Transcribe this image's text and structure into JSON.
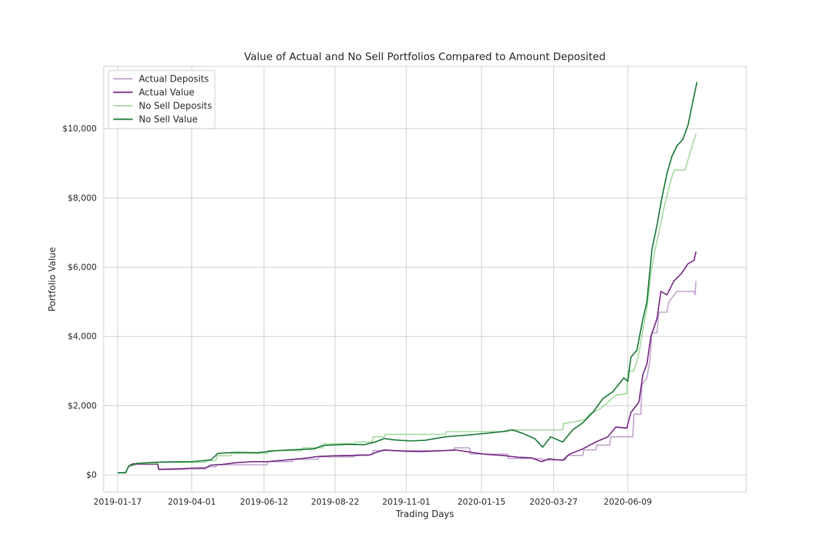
{
  "chart_data": {
    "type": "line",
    "title": "Value of Actual and No Sell Portfolios Compared to Amount Deposited",
    "xlabel": "Trading Days",
    "ylabel": "Portfolio Value",
    "x_tick_labels": [
      "2019-01-17",
      "2019-04-01",
      "2019-06-12",
      "2019-08-22",
      "2019-11-01",
      "2020-01-15",
      "2020-03-27",
      "2020-06-09"
    ],
    "y_ticks": [
      0,
      2000,
      4000,
      6000,
      8000,
      10000
    ],
    "y_tick_labels": [
      "$0",
      "$2,000",
      "$4,000",
      "$6,000",
      "$8,000",
      "$10,000"
    ],
    "xlim": [
      "2019-01-03",
      "2020-10-05"
    ],
    "ylim": [
      -500,
      11800
    ],
    "grid": true,
    "legend_position": "top-left",
    "series": [
      {
        "name": "Actual Deposits",
        "color": "#c2a5cf",
        "points": [
          [
            "2019-01-17",
            60
          ],
          [
            "2019-01-25",
            60
          ],
          [
            "2019-01-28",
            250
          ],
          [
            "2019-02-05",
            300
          ],
          [
            "2019-02-26",
            300
          ],
          [
            "2019-02-27",
            150
          ],
          [
            "2019-03-20",
            150
          ],
          [
            "2019-03-28",
            170
          ],
          [
            "2019-04-15",
            170
          ],
          [
            "2019-04-16",
            230
          ],
          [
            "2019-04-25",
            230
          ],
          [
            "2019-04-26",
            290
          ],
          [
            "2019-06-15",
            290
          ],
          [
            "2019-06-16",
            380
          ],
          [
            "2019-07-10",
            380
          ],
          [
            "2019-07-11",
            450
          ],
          [
            "2019-08-05",
            450
          ],
          [
            "2019-08-06",
            520
          ],
          [
            "2019-09-10",
            520
          ],
          [
            "2019-09-11",
            580
          ],
          [
            "2019-09-28",
            580
          ],
          [
            "2019-09-29",
            700
          ],
          [
            "2019-12-18",
            700
          ],
          [
            "2019-12-19",
            780
          ],
          [
            "2020-01-03",
            780
          ],
          [
            "2020-01-04",
            600
          ],
          [
            "2020-02-10",
            600
          ],
          [
            "2020-02-11",
            470
          ],
          [
            "2020-03-15",
            470
          ],
          [
            "2020-03-16",
            430
          ],
          [
            "2020-04-08",
            430
          ],
          [
            "2020-04-09",
            560
          ],
          [
            "2020-04-25",
            560
          ],
          [
            "2020-04-26",
            720
          ],
          [
            "2020-05-08",
            720
          ],
          [
            "2020-05-09",
            860
          ],
          [
            "2020-05-22",
            860
          ],
          [
            "2020-05-23",
            1100
          ],
          [
            "2020-06-14",
            1100
          ],
          [
            "2020-06-15",
            1750
          ],
          [
            "2020-06-22",
            1750
          ],
          [
            "2020-06-23",
            2600
          ],
          [
            "2020-06-28",
            2800
          ],
          [
            "2020-07-01",
            3300
          ],
          [
            "2020-07-03",
            4100
          ],
          [
            "2020-07-08",
            4100
          ],
          [
            "2020-07-10",
            4700
          ],
          [
            "2020-07-18",
            4700
          ],
          [
            "2020-07-20",
            5000
          ],
          [
            "2020-07-28",
            5300
          ],
          [
            "2020-08-14",
            5300
          ],
          [
            "2020-08-15",
            5200
          ],
          [
            "2020-08-16",
            5600
          ]
        ]
      },
      {
        "name": "Actual Value",
        "color": "#762a83",
        "points": [
          [
            "2019-01-17",
            60
          ],
          [
            "2019-01-25",
            65
          ],
          [
            "2019-01-28",
            250
          ],
          [
            "2019-02-01",
            320
          ],
          [
            "2019-02-10",
            310
          ],
          [
            "2019-02-26",
            310
          ],
          [
            "2019-02-27",
            160
          ],
          [
            "2019-03-15",
            170
          ],
          [
            "2019-04-01",
            190
          ],
          [
            "2019-04-15",
            200
          ],
          [
            "2019-04-20",
            280
          ],
          [
            "2019-05-01",
            300
          ],
          [
            "2019-05-15",
            350
          ],
          [
            "2019-06-01",
            380
          ],
          [
            "2019-06-15",
            380
          ],
          [
            "2019-07-01",
            420
          ],
          [
            "2019-07-20",
            470
          ],
          [
            "2019-08-05",
            530
          ],
          [
            "2019-08-20",
            550
          ],
          [
            "2019-09-10",
            560
          ],
          [
            "2019-09-25",
            570
          ],
          [
            "2019-10-01",
            640
          ],
          [
            "2019-10-10",
            720
          ],
          [
            "2019-10-20",
            700
          ],
          [
            "2019-11-01",
            680
          ],
          [
            "2019-11-15",
            670
          ],
          [
            "2019-12-01",
            690
          ],
          [
            "2019-12-20",
            720
          ],
          [
            "2020-01-05",
            650
          ],
          [
            "2020-01-20",
            590
          ],
          [
            "2020-02-05",
            560
          ],
          [
            "2020-02-20",
            510
          ],
          [
            "2020-03-05",
            490
          ],
          [
            "2020-03-15",
            380
          ],
          [
            "2020-03-22",
            460
          ],
          [
            "2020-04-05",
            420
          ],
          [
            "2020-04-12",
            600
          ],
          [
            "2020-04-25",
            750
          ],
          [
            "2020-05-08",
            950
          ],
          [
            "2020-05-20",
            1100
          ],
          [
            "2020-05-28",
            1380
          ],
          [
            "2020-06-08",
            1350
          ],
          [
            "2020-06-12",
            1800
          ],
          [
            "2020-06-20",
            2100
          ],
          [
            "2020-06-24",
            2900
          ],
          [
            "2020-06-28",
            3200
          ],
          [
            "2020-07-02",
            4000
          ],
          [
            "2020-07-08",
            4500
          ],
          [
            "2020-07-12",
            5300
          ],
          [
            "2020-07-18",
            5200
          ],
          [
            "2020-07-25",
            5600
          ],
          [
            "2020-08-01",
            5800
          ],
          [
            "2020-08-08",
            6100
          ],
          [
            "2020-08-14",
            6200
          ],
          [
            "2020-08-16",
            6450
          ]
        ]
      },
      {
        "name": "No Sell Deposits",
        "color": "#a6dba0",
        "points": [
          [
            "2019-01-17",
            60
          ],
          [
            "2019-01-25",
            60
          ],
          [
            "2019-01-28",
            250
          ],
          [
            "2019-02-05",
            330
          ],
          [
            "2019-02-25",
            330
          ],
          [
            "2019-02-26",
            360
          ],
          [
            "2019-04-15",
            360
          ],
          [
            "2019-04-16",
            410
          ],
          [
            "2019-04-25",
            410
          ],
          [
            "2019-04-26",
            550
          ],
          [
            "2019-05-10",
            550
          ],
          [
            "2019-05-11",
            620
          ],
          [
            "2019-06-15",
            620
          ],
          [
            "2019-06-16",
            700
          ],
          [
            "2019-07-20",
            700
          ],
          [
            "2019-07-21",
            780
          ],
          [
            "2019-08-10",
            780
          ],
          [
            "2019-08-11",
            900
          ],
          [
            "2019-09-10",
            900
          ],
          [
            "2019-09-11",
            950
          ],
          [
            "2019-09-28",
            950
          ],
          [
            "2019-09-29",
            1100
          ],
          [
            "2019-10-10",
            1100
          ],
          [
            "2019-10-11",
            1170
          ],
          [
            "2019-12-10",
            1170
          ],
          [
            "2019-12-11",
            1250
          ],
          [
            "2020-02-10",
            1250
          ],
          [
            "2020-02-11",
            1300
          ],
          [
            "2020-04-05",
            1300
          ],
          [
            "2020-04-06",
            1480
          ],
          [
            "2020-04-20",
            1550
          ],
          [
            "2020-04-28",
            1600
          ],
          [
            "2020-05-01",
            1750
          ],
          [
            "2020-05-12",
            1900
          ],
          [
            "2020-05-20",
            2100
          ],
          [
            "2020-05-28",
            2300
          ],
          [
            "2020-06-08",
            2350
          ],
          [
            "2020-06-09",
            3000
          ],
          [
            "2020-06-15",
            3000
          ],
          [
            "2020-06-20",
            3500
          ],
          [
            "2020-06-24",
            4200
          ],
          [
            "2020-06-28",
            4800
          ],
          [
            "2020-07-02",
            5800
          ],
          [
            "2020-07-06",
            6500
          ],
          [
            "2020-07-10",
            7000
          ],
          [
            "2020-07-15",
            7700
          ],
          [
            "2020-07-20",
            8300
          ],
          [
            "2020-07-25",
            8800
          ],
          [
            "2020-08-05",
            8800
          ],
          [
            "2020-08-10",
            9300
          ],
          [
            "2020-08-16",
            9850
          ]
        ]
      },
      {
        "name": "No Sell Value",
        "color": "#1b7837",
        "points": [
          [
            "2019-01-17",
            60
          ],
          [
            "2019-01-25",
            65
          ],
          [
            "2019-01-28",
            250
          ],
          [
            "2019-02-05",
            330
          ],
          [
            "2019-03-01",
            370
          ],
          [
            "2019-04-01",
            380
          ],
          [
            "2019-04-20",
            430
          ],
          [
            "2019-04-27",
            620
          ],
          [
            "2019-05-15",
            650
          ],
          [
            "2019-06-05",
            640
          ],
          [
            "2019-06-25",
            700
          ],
          [
            "2019-07-15",
            730
          ],
          [
            "2019-08-01",
            750
          ],
          [
            "2019-08-10",
            850
          ],
          [
            "2019-09-05",
            880
          ],
          [
            "2019-09-20",
            870
          ],
          [
            "2019-10-01",
            950
          ],
          [
            "2019-10-10",
            1050
          ],
          [
            "2019-10-20",
            1010
          ],
          [
            "2019-11-05",
            980
          ],
          [
            "2019-11-20",
            1000
          ],
          [
            "2019-12-10",
            1100
          ],
          [
            "2020-01-01",
            1150
          ],
          [
            "2020-01-20",
            1200
          ],
          [
            "2020-02-05",
            1250
          ],
          [
            "2020-02-15",
            1300
          ],
          [
            "2020-02-25",
            1200
          ],
          [
            "2020-03-08",
            1050
          ],
          [
            "2020-03-16",
            800
          ],
          [
            "2020-03-24",
            1100
          ],
          [
            "2020-04-05",
            950
          ],
          [
            "2020-04-15",
            1300
          ],
          [
            "2020-04-25",
            1500
          ],
          [
            "2020-05-05",
            1800
          ],
          [
            "2020-05-15",
            2200
          ],
          [
            "2020-05-25",
            2400
          ],
          [
            "2020-06-05",
            2800
          ],
          [
            "2020-06-09",
            2700
          ],
          [
            "2020-06-12",
            3400
          ],
          [
            "2020-06-18",
            3600
          ],
          [
            "2020-06-24",
            4500
          ],
          [
            "2020-06-28",
            5000
          ],
          [
            "2020-07-03",
            6500
          ],
          [
            "2020-07-08",
            7200
          ],
          [
            "2020-07-13",
            8000
          ],
          [
            "2020-07-18",
            8700
          ],
          [
            "2020-07-23",
            9200
          ],
          [
            "2020-07-28",
            9500
          ],
          [
            "2020-08-03",
            9700
          ],
          [
            "2020-08-08",
            10100
          ],
          [
            "2020-08-13",
            10800
          ],
          [
            "2020-08-17",
            11350
          ]
        ]
      }
    ]
  }
}
